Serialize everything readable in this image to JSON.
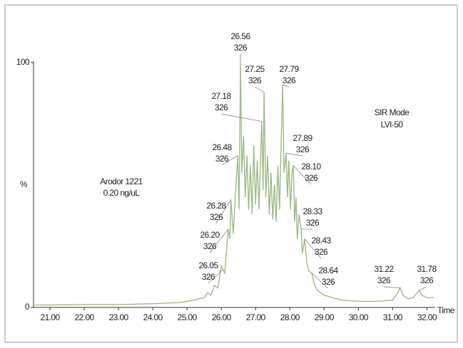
{
  "chart_data": {
    "type": "line",
    "x_label": "Time",
    "y_label": "%",
    "sample_label": [
      "Arodor 1221",
      "0.20 ng/uL"
    ],
    "mode_label": [
      "SIR Mode",
      "LVI-50"
    ],
    "color": "#9fba8a",
    "xlim": [
      20.52,
      32.2
    ],
    "ylim": [
      0,
      100
    ],
    "xticks": [
      {
        "value": 21,
        "label": "21.00"
      },
      {
        "value": 22,
        "label": "22.00"
      },
      {
        "value": 23,
        "label": "23.00"
      },
      {
        "value": 24,
        "label": "24.00"
      },
      {
        "value": 25,
        "label": "25.00"
      },
      {
        "value": 26,
        "label": "26.00"
      },
      {
        "value": 27,
        "label": "27.00"
      },
      {
        "value": 28,
        "label": "28.00"
      },
      {
        "value": 29,
        "label": "29.00"
      },
      {
        "value": 30,
        "label": "30.00"
      },
      {
        "value": 31,
        "label": "31.00"
      },
      {
        "value": 32,
        "label": "32.00"
      }
    ],
    "yticks": [
      0,
      100
    ],
    "x": [
      20.55,
      21,
      22,
      23,
      24,
      24.8,
      25.2,
      25.5,
      25.6,
      25.7,
      25.8,
      25.9,
      26.0,
      26.1,
      26.2,
      26.25,
      26.28,
      26.35,
      26.42,
      26.48,
      26.52,
      26.56,
      26.6,
      26.65,
      26.7,
      26.75,
      26.8,
      26.85,
      26.9,
      26.95,
      27.0,
      27.05,
      27.1,
      27.18,
      27.22,
      27.25,
      27.3,
      27.35,
      27.4,
      27.45,
      27.5,
      27.55,
      27.6,
      27.65,
      27.7,
      27.75,
      27.79,
      27.83,
      27.89,
      27.93,
      27.97,
      28.02,
      28.06,
      28.1,
      28.14,
      28.18,
      28.22,
      28.27,
      28.33,
      28.37,
      28.43,
      28.5,
      28.55,
      28.64,
      28.7,
      28.8,
      29.0,
      29.5,
      30.0,
      30.5,
      31.0,
      31.15,
      31.22,
      31.3,
      31.45,
      31.6,
      31.78,
      31.85,
      32.0,
      32.2
    ],
    "values": [
      1,
      1,
      1.2,
      1.2,
      1.5,
      2,
      3,
      4,
      6,
      5,
      9,
      8,
      17,
      14,
      32,
      28,
      44,
      30,
      48,
      62,
      40,
      100,
      55,
      70,
      45,
      62,
      40,
      58,
      38,
      66,
      42,
      60,
      40,
      76,
      48,
      88,
      45,
      62,
      38,
      55,
      36,
      50,
      35,
      58,
      40,
      70,
      91,
      55,
      63,
      45,
      60,
      40,
      55,
      58,
      35,
      45,
      28,
      38,
      32,
      22,
      28,
      18,
      15,
      14,
      10,
      7,
      5,
      3,
      2.5,
      2.5,
      3,
      6,
      8,
      5,
      3.5,
      4,
      7,
      5,
      4,
      4
    ],
    "annotations": [
      {
        "time": "26.56",
        "mass": "326"
      },
      {
        "time": "27.25",
        "mass": "326"
      },
      {
        "time": "27.79",
        "mass": "326"
      },
      {
        "time": "27.18",
        "mass": "326"
      },
      {
        "time": "26.48",
        "mass": "326"
      },
      {
        "time": "27.89",
        "mass": "326"
      },
      {
        "time": "28.10",
        "mass": "326"
      },
      {
        "time": "26.28",
        "mass": "326"
      },
      {
        "time": "26.20",
        "mass": "326"
      },
      {
        "time": "26.05",
        "mass": "326"
      },
      {
        "time": "28.33",
        "mass": "326"
      },
      {
        "time": "28.43",
        "mass": "326"
      },
      {
        "time": "28.64",
        "mass": "326"
      },
      {
        "time": "31.22",
        "mass": "326"
      },
      {
        "time": "31.78",
        "mass": "326"
      }
    ]
  }
}
